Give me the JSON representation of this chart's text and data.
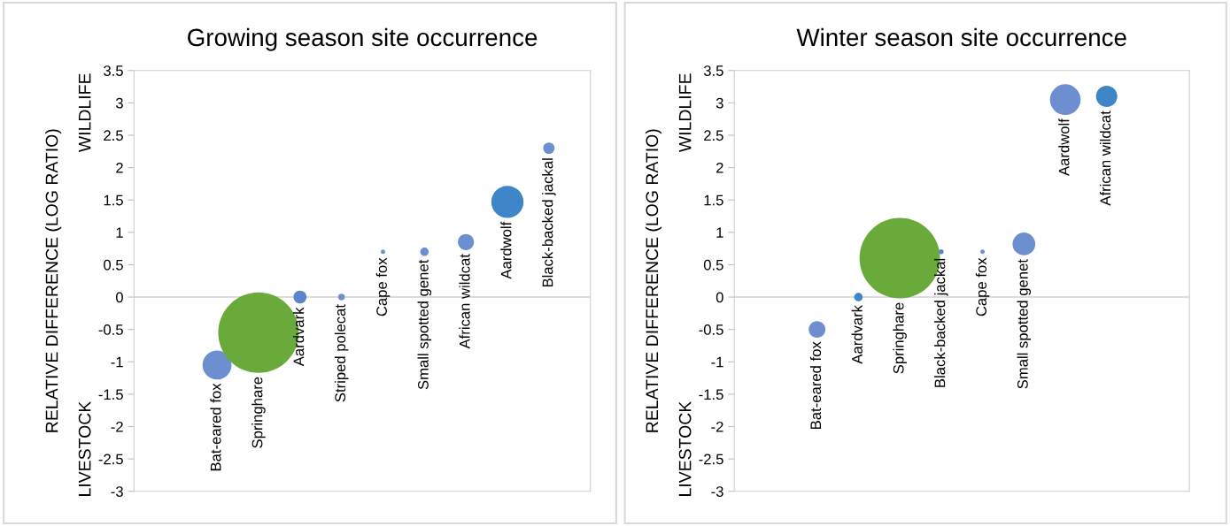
{
  "chart_data": [
    {
      "type": "bubble",
      "title": "Growing season site occurrence",
      "ylabel": "RELATIVE DIFFERENCE (LOG RATIO)",
      "annotations": [
        "LIVESTOCK",
        "WILDLIFE"
      ],
      "categories": [
        "Bat-eared fox",
        "Springhare",
        "Aardvark",
        "Striped polecat",
        "Cape fox",
        "Small spotted genet",
        "African wildcat",
        "Aardwolf",
        "Black-backed jackal"
      ],
      "values": [
        -1.05,
        -0.55,
        0,
        0,
        0.7,
        0.7,
        0.85,
        1.47,
        2.3
      ],
      "sizes": [
        0.13,
        1,
        0.026,
        0.007,
        0.003,
        0.011,
        0.04,
        0.16,
        0.02
      ],
      "colors": [
        "#6d8fd0",
        "#6aaa3a",
        "#5a84cc",
        "#6d8fd0",
        "#6d8fd0",
        "#6d8fd0",
        "#6d8fd0",
        "#3f86c8",
        "#6d8fd0"
      ],
      "ylim": [
        -3,
        3.5
      ],
      "yticks": [
        3.5,
        3,
        2.5,
        2,
        1.5,
        1,
        0.5,
        0,
        -0.5,
        -1,
        -1.5,
        -2,
        -2.5,
        -3
      ],
      "ref_lines": [
        {
          "axis": "y",
          "value": 0,
          "color": "#d0d0d0"
        }
      ],
      "tick_labels": "y",
      "grid": false,
      "legend": false
    },
    {
      "type": "bubble",
      "title": "Winter season site occurrence",
      "ylabel": "RELATIVE DIFFERENCE (LOG RATIO)",
      "annotations": [
        "LIVESTOCK",
        "WILDLIFE"
      ],
      "categories": [
        "Bat-eared fox",
        "Aardvark",
        "Springhare",
        "Black-backed jackal",
        "Cape fox",
        "Small spotted genet",
        "Aardwolf",
        "African wildcat"
      ],
      "values": [
        -0.5,
        0,
        0.6,
        0.7,
        0.7,
        0.82,
        3.05,
        3.1
      ],
      "sizes": [
        0.043,
        0.011,
        1,
        0.004,
        0.003,
        0.08,
        0.145,
        0.07
      ],
      "colors": [
        "#6d8fd0",
        "#3f86c8",
        "#6aaa3a",
        "#5a84cc",
        "#6d8fd0",
        "#6d8fd0",
        "#6d8fd0",
        "#3f86c8"
      ],
      "ylim": [
        -3,
        3.5
      ],
      "yticks": [
        3.5,
        3,
        2.5,
        2,
        1.5,
        1,
        0.5,
        0,
        -0.5,
        -1,
        -1.5,
        -2,
        -2.5,
        -3
      ],
      "ref_lines": [
        {
          "axis": "y",
          "value": 0,
          "color": "#d0d0d0"
        }
      ],
      "tick_labels": "y",
      "grid": false,
      "legend": false
    }
  ]
}
